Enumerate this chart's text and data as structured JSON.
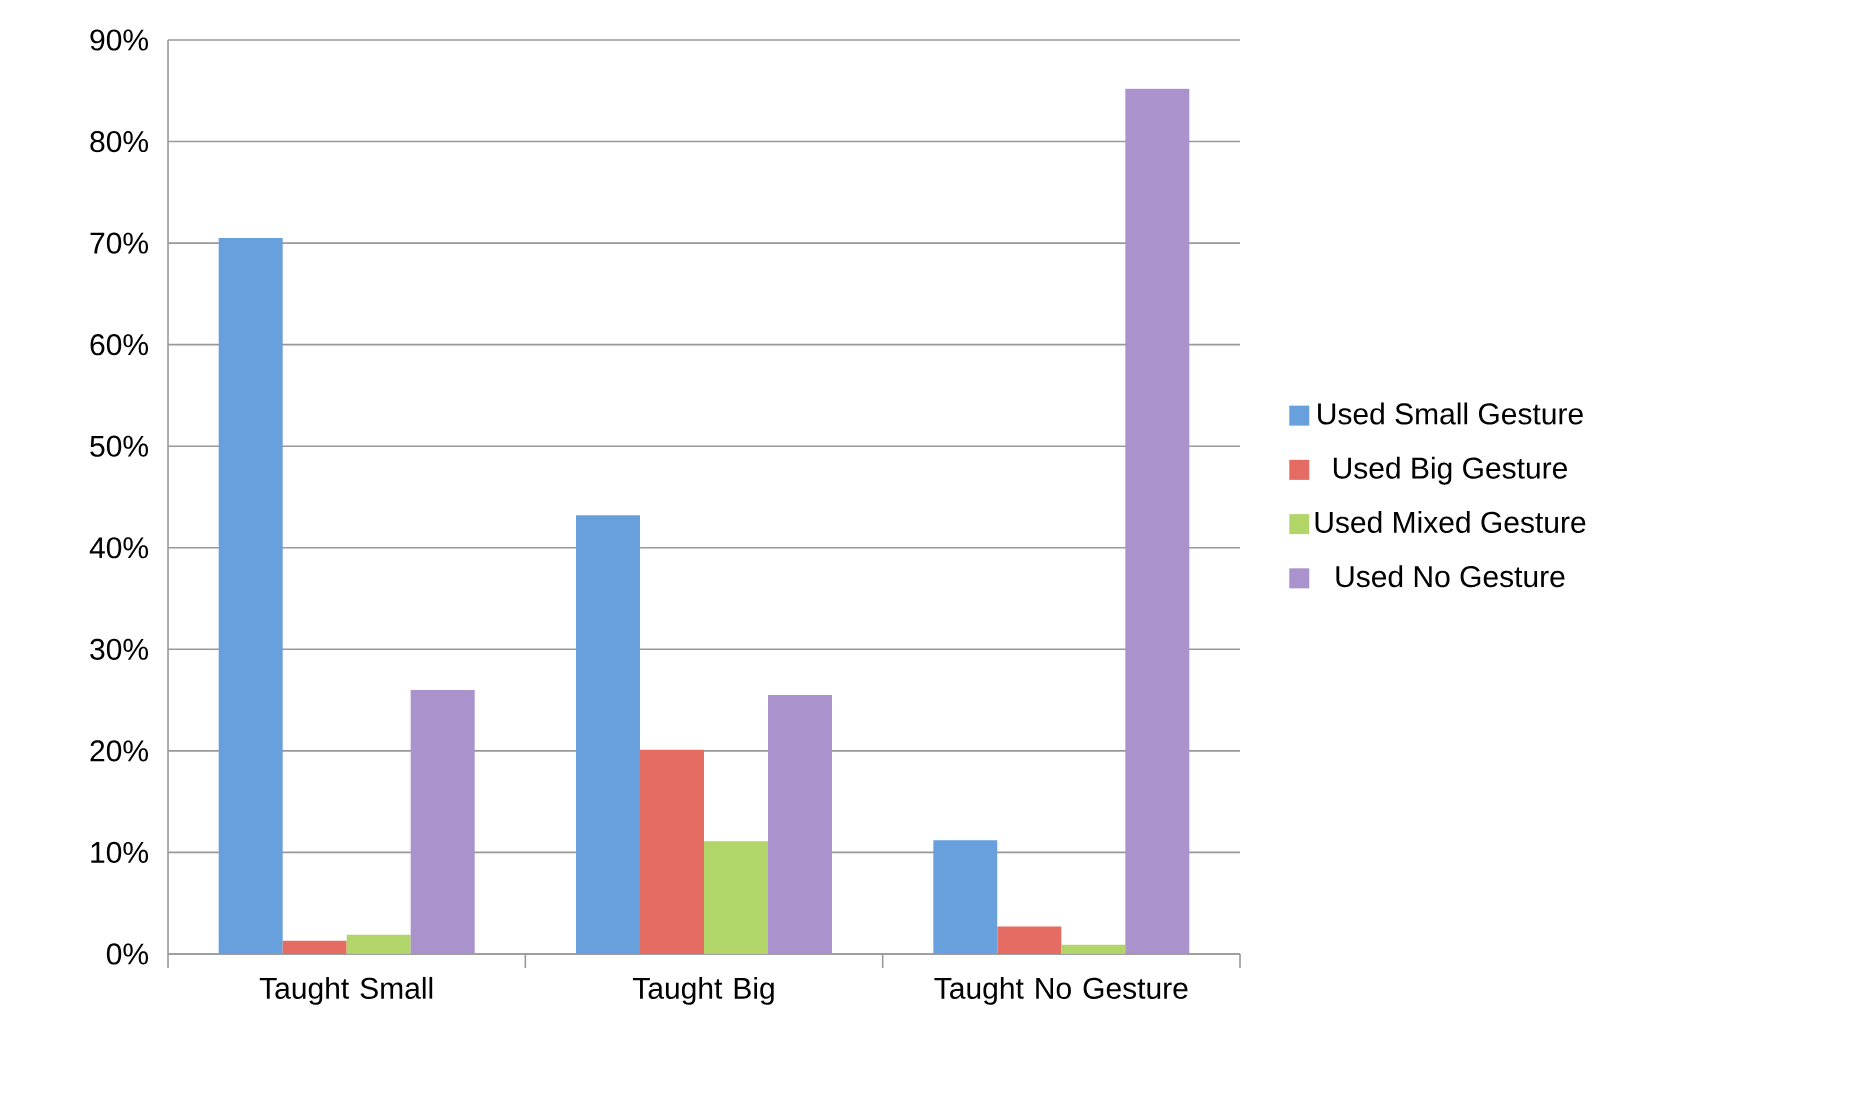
{
  "chart_data": {
    "type": "bar",
    "categories": [
      "Taught Small",
      "Taught Big",
      "Taught No Gesture"
    ],
    "series": [
      {
        "name": "Used Small Gesture",
        "color": "#67a0dc",
        "values": [
          70.5,
          43.2,
          11.2
        ]
      },
      {
        "name": "Used Big Gesture",
        "color": "#e46c63",
        "values": [
          1.3,
          20.1,
          2.7
        ]
      },
      {
        "name": "Used Mixed Gesture",
        "color": "#b2d56a",
        "values": [
          1.9,
          11.1,
          0.9
        ]
      },
      {
        "name": "Used No Gesture",
        "color": "#aa92cc",
        "values": [
          26.0,
          25.5,
          85.2
        ]
      }
    ],
    "ylim": [
      0,
      90
    ],
    "yticks": [
      {
        "value": 0,
        "label": "0%"
      },
      {
        "value": 10,
        "label": "10%"
      },
      {
        "value": 20,
        "label": "20%"
      },
      {
        "value": 30,
        "label": "30%"
      },
      {
        "value": 40,
        "label": "40%"
      },
      {
        "value": 50,
        "label": "50%"
      },
      {
        "value": 60,
        "label": "60%"
      },
      {
        "value": 70,
        "label": "70%"
      },
      {
        "value": 80,
        "label": "80%"
      },
      {
        "value": 90,
        "label": "90%"
      }
    ],
    "grid": "y",
    "legend": "right"
  }
}
